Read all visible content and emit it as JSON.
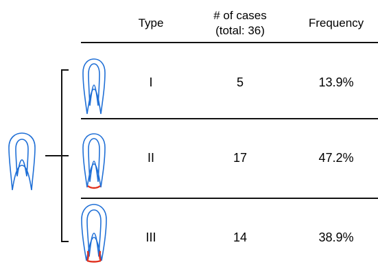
{
  "table": {
    "headers": {
      "type": "Type",
      "cases_line1": "# of cases",
      "cases_line2": "(total: 36)",
      "frequency": "Frequency"
    },
    "rows": [
      {
        "type": "I",
        "cases": "5",
        "frequency": "13.9%",
        "apex_highlight": false
      },
      {
        "type": "II",
        "cases": "17",
        "frequency": "47.2%",
        "apex_highlight": true
      },
      {
        "type": "III",
        "cases": "14",
        "frequency": "38.9%",
        "apex_highlight": true
      }
    ]
  },
  "colors": {
    "tooth_outline": "#1f6fd6",
    "apex_highlight": "#e0301e",
    "lines": "#111111"
  }
}
